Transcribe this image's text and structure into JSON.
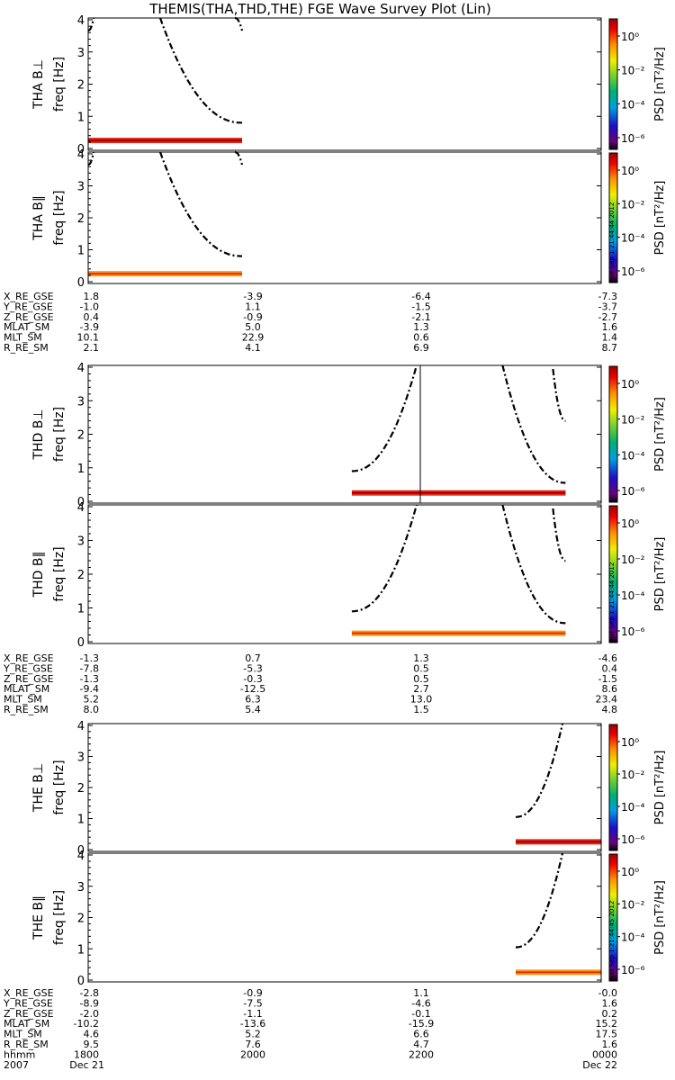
{
  "title": "THEMIS(THA,THD,THE) FGE Wave Survey Plot (Lin)",
  "colorbar": {
    "label": "PSD [nT²/Hz]",
    "tick_labels": [
      "10⁰",
      "10⁻²",
      "10⁻⁴",
      "10⁻⁶"
    ],
    "scale": "log"
  },
  "freq_axis": {
    "label": "freq [Hz]",
    "ticks": [
      "0",
      "1",
      "2",
      "3",
      "4"
    ],
    "range": [
      0,
      4
    ]
  },
  "time_axis": {
    "range_hhmm": [
      1800,
      2400
    ]
  },
  "chart_data": [
    {
      "type": "heatmap",
      "probe": "THA",
      "panels": [
        {
          "ylabel": "THA B⊥",
          "data_hhmm": [
            1800,
            1948
          ],
          "stamp": ""
        },
        {
          "ylabel": "THA B∥",
          "data_hhmm": [
            1800,
            1948
          ],
          "stamp": "Sat Sep  1 21:44:44 2012"
        }
      ],
      "ephemeris": [
        {
          "label": "X_RE_GSE",
          "values": [
            "1.8",
            "-3.9",
            "-6.4",
            "-7.3"
          ]
        },
        {
          "label": "Y_RE_GSE",
          "values": [
            "-1.0",
            "1.1",
            "-1.5",
            "-3.7"
          ]
        },
        {
          "label": "Z_RE_GSE",
          "values": [
            "0.4",
            "-0.9",
            "-2.1",
            "-2.7"
          ]
        },
        {
          "label": "MLAT_SM",
          "values": [
            "-3.9",
            "5.0",
            "1.3",
            "1.6"
          ]
        },
        {
          "label": "MLT_SM",
          "values": [
            "10.1",
            "22.9",
            "0.6",
            "1.4"
          ]
        },
        {
          "label": "R_RE_SM",
          "values": [
            "2.1",
            "4.1",
            "6.9",
            "8.7"
          ]
        }
      ]
    },
    {
      "type": "heatmap",
      "probe": "THD",
      "panels": [
        {
          "ylabel": "THD B⊥",
          "data_hhmm": [
            2105,
            2335
          ],
          "stamp": ""
        },
        {
          "ylabel": "THD B∥",
          "data_hhmm": [
            2105,
            2335
          ],
          "stamp": "Sat Sep  1 21:44:44 2012"
        }
      ],
      "ephemeris": [
        {
          "label": "X_RE_GSE",
          "values": [
            "-1.3",
            "0.7",
            "1.3",
            "-4.6"
          ]
        },
        {
          "label": "Y_RE_GSE",
          "values": [
            "-7.8",
            "-5.3",
            "0.5",
            "0.4"
          ]
        },
        {
          "label": "Z_RE_GSE",
          "values": [
            "-1.3",
            "-0.3",
            "0.5",
            "-1.5"
          ]
        },
        {
          "label": "MLAT_SM",
          "values": [
            "-9.4",
            "-12.5",
            "2.7",
            "8.6"
          ]
        },
        {
          "label": "MLT_SM",
          "values": [
            "5.2",
            "6.3",
            "13.0",
            "23.4"
          ]
        },
        {
          "label": "R_RE_SM",
          "values": [
            "8.0",
            "5.4",
            "1.5",
            "4.8"
          ]
        }
      ]
    },
    {
      "type": "heatmap",
      "probe": "THE",
      "panels": [
        {
          "ylabel": "THE B⊥",
          "data_hhmm": [
            2300,
            2400
          ],
          "stamp": ""
        },
        {
          "ylabel": "THE B∥",
          "data_hhmm": [
            2300,
            2400
          ],
          "stamp": "Sat Sep  1 21:44:45 2012"
        }
      ],
      "ephemeris": [
        {
          "label": "X_RE_GSE",
          "values": [
            "-2.8",
            "-0.9",
            "1.1",
            "-0.0"
          ]
        },
        {
          "label": "Y_RE_GSE",
          "values": [
            "-8.9",
            "-7.5",
            "-4.6",
            "1.6"
          ]
        },
        {
          "label": "Z_RE_GSE",
          "values": [
            "-2.0",
            "-1.1",
            "-0.1",
            "0.2"
          ]
        },
        {
          "label": "MLAT_SM",
          "values": [
            "-10.2",
            "-13.6",
            "-15.9",
            "15.2"
          ]
        },
        {
          "label": "MLT_SM",
          "values": [
            "4.6",
            "5.2",
            "6.6",
            "17.5"
          ]
        },
        {
          "label": "R_RE_SM",
          "values": [
            "9.5",
            "7.6",
            "4.7",
            "1.6"
          ]
        }
      ],
      "time_row": {
        "label": "hhmm",
        "values": [
          "1800",
          "2000",
          "2200",
          "0000"
        ]
      },
      "date_row": {
        "year": "2007",
        "start": "Dec 21",
        "end": "Dec 22"
      }
    }
  ]
}
